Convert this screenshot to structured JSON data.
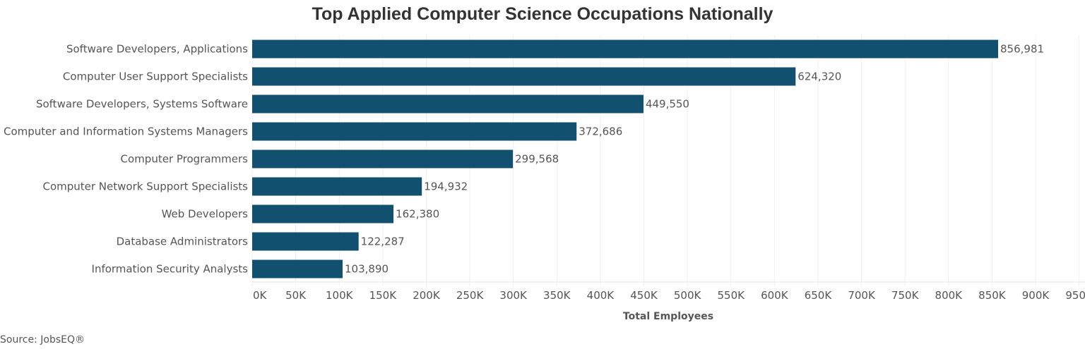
{
  "chart_data": {
    "type": "bar",
    "orientation": "horizontal",
    "title": "Top Applied Computer Science Occupations Nationally",
    "xlabel": "Total Employees",
    "ylabel": "",
    "categories": [
      "Software Developers, Applications",
      "Computer User Support Specialists",
      "Software Developers, Systems Software",
      "Computer and Information Systems Managers",
      "Computer Programmers",
      "Computer Network Support Specialists",
      "Web Developers",
      "Database Administrators",
      "Information Security Analysts"
    ],
    "values": [
      856981,
      624320,
      449550,
      372686,
      299568,
      194932,
      162380,
      122287,
      103890
    ],
    "value_labels": [
      "856,981",
      "624,320",
      "449,550",
      "372,686",
      "299,568",
      "194,932",
      "162,380",
      "122,287",
      "103,890"
    ],
    "xlim": [
      0,
      950000
    ],
    "xticks": [
      "0K",
      "50K",
      "100K",
      "150K",
      "200K",
      "250K",
      "300K",
      "350K",
      "400K",
      "450K",
      "500K",
      "550K",
      "600K",
      "650K",
      "700K",
      "750K",
      "800K",
      "850K",
      "900K",
      "950K"
    ],
    "grid": true,
    "bar_color": "#11506f",
    "source": "Source: JobsEQ®"
  }
}
